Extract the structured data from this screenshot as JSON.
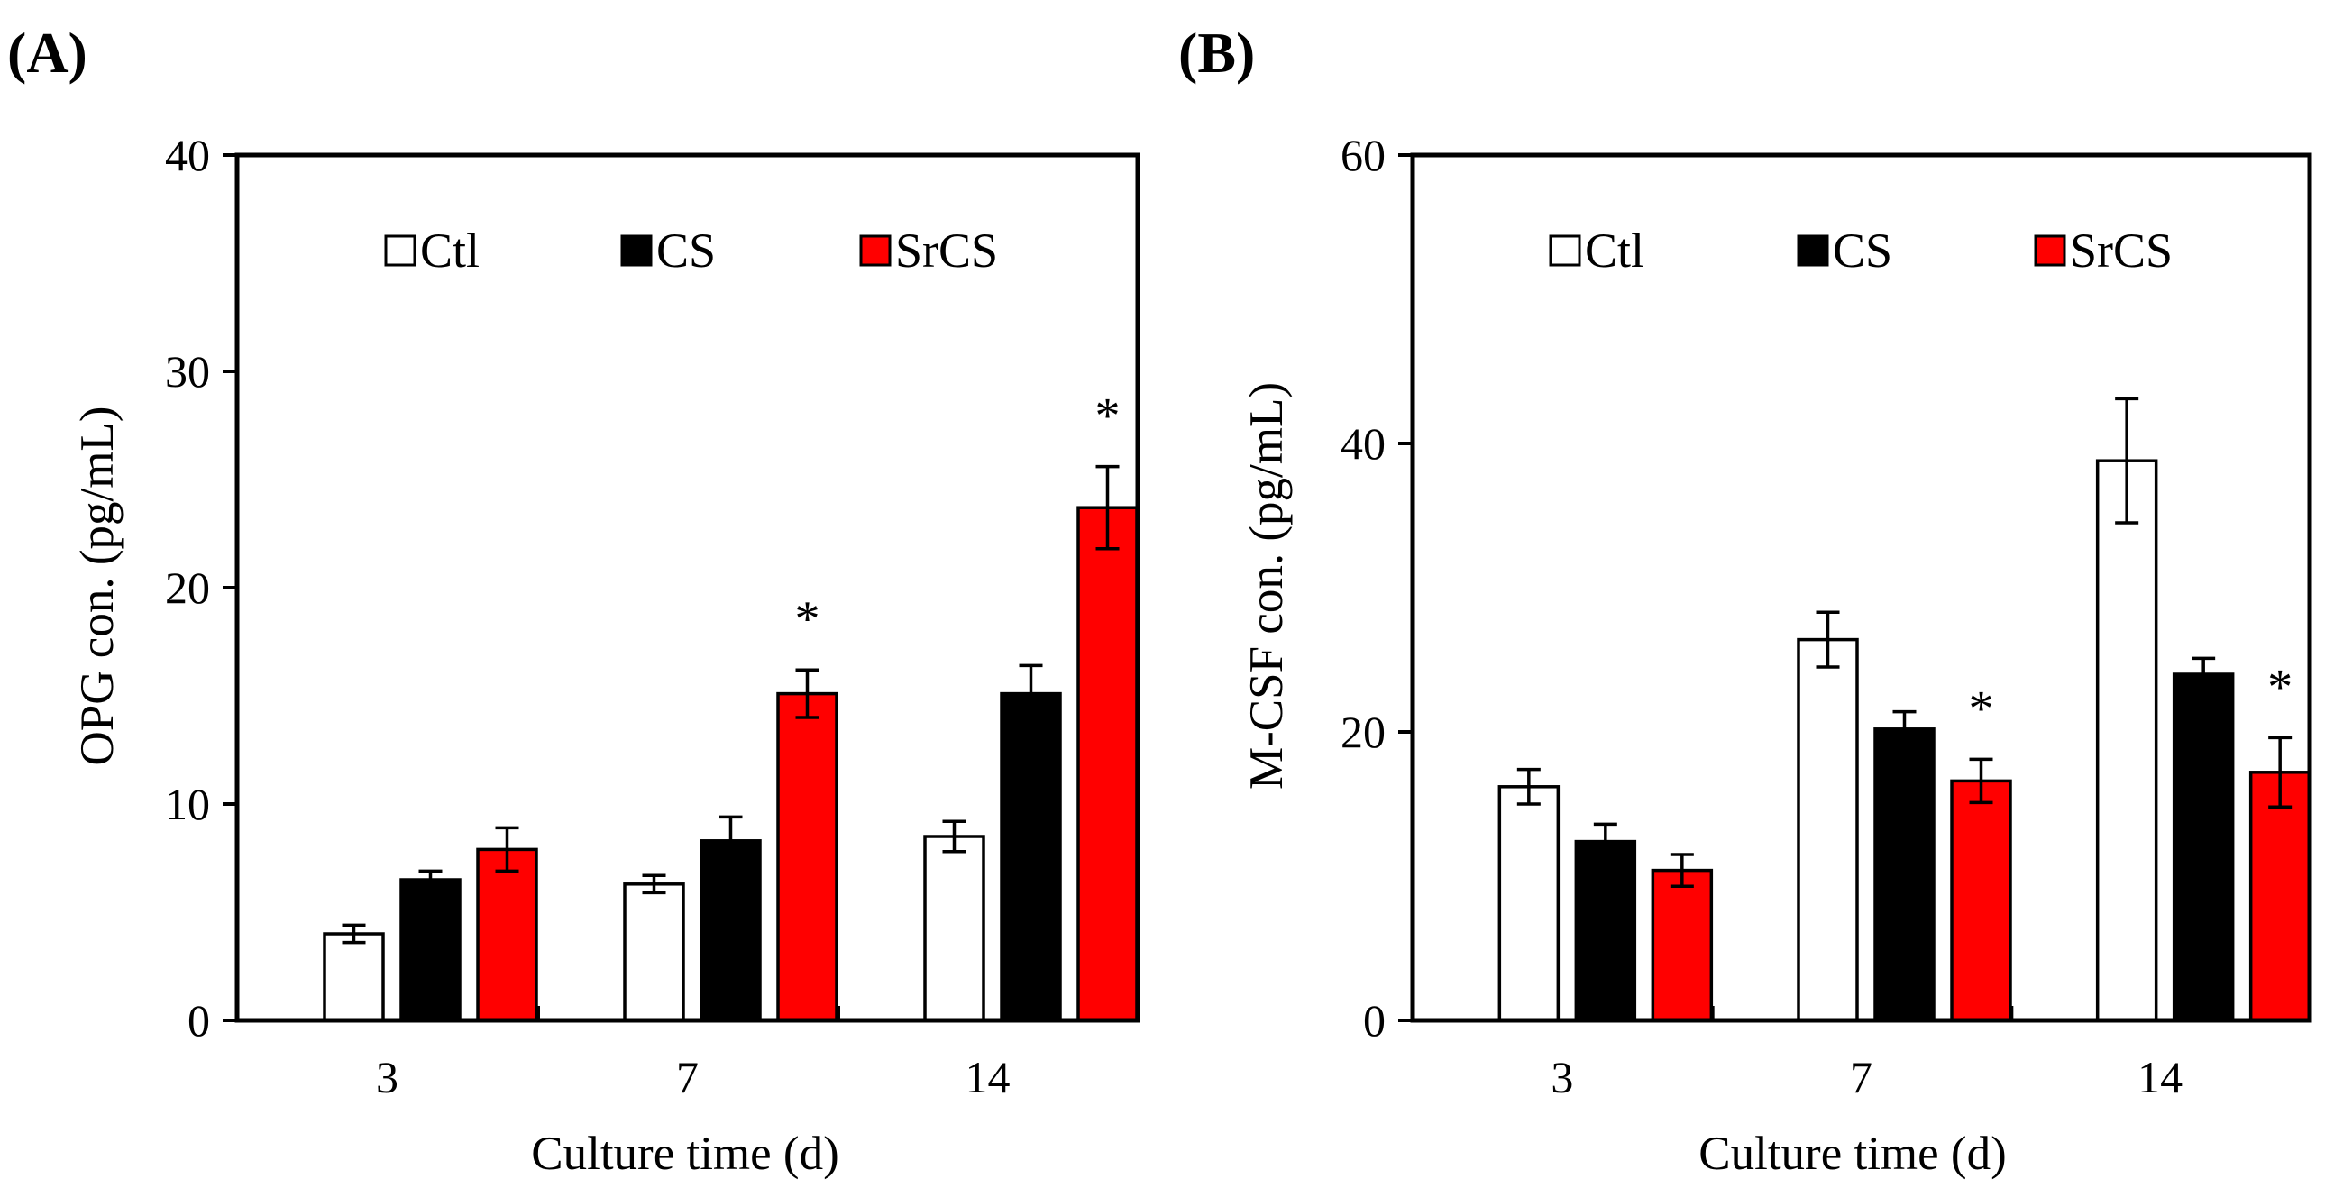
{
  "chart_data": [
    {
      "type": "bar",
      "panel_label": "(A)",
      "categories": [
        "3",
        "7",
        "14"
      ],
      "xlabel": "Culture time (d)",
      "ylabel": "OPG con. (pg/mL)",
      "ylim": [
        0,
        40
      ],
      "yticks": [
        0,
        10,
        20,
        30,
        40
      ],
      "legend_position": "top",
      "series": [
        {
          "name": "Ctl",
          "color": "#ffffff",
          "values": [
            4.0,
            6.3,
            8.5
          ],
          "errors": [
            0.4,
            0.4,
            0.7
          ],
          "sig": [
            "",
            "",
            ""
          ]
        },
        {
          "name": "CS",
          "color": "#000000",
          "values": [
            6.5,
            8.3,
            15.1
          ],
          "errors": [
            0.4,
            1.1,
            1.3
          ],
          "sig": [
            "",
            "",
            ""
          ]
        },
        {
          "name": "SrCS",
          "color": "#ff0000",
          "values": [
            7.9,
            15.1,
            23.7
          ],
          "errors": [
            1.0,
            1.1,
            1.9
          ],
          "sig": [
            "",
            "*",
            "*"
          ]
        }
      ]
    },
    {
      "type": "bar",
      "panel_label": "(B)",
      "categories": [
        "3",
        "7",
        "14"
      ],
      "xlabel": "Culture time (d)",
      "ylabel": "M-CSF con. (pg/mL)",
      "ylim": [
        0,
        60
      ],
      "yticks": [
        0,
        20,
        40,
        60
      ],
      "legend_position": "top",
      "series": [
        {
          "name": "Ctl",
          "color": "#ffffff",
          "values": [
            16.2,
            26.4,
            38.8
          ],
          "errors": [
            1.2,
            1.9,
            4.3
          ],
          "sig": [
            "",
            "",
            ""
          ]
        },
        {
          "name": "CS",
          "color": "#000000",
          "values": [
            12.4,
            20.2,
            24.0
          ],
          "errors": [
            1.2,
            1.2,
            1.1
          ],
          "sig": [
            "",
            "",
            ""
          ]
        },
        {
          "name": "SrCS",
          "color": "#ff0000",
          "values": [
            10.4,
            16.6,
            17.2
          ],
          "errors": [
            1.1,
            1.5,
            2.4
          ],
          "sig": [
            "",
            "*",
            "*"
          ]
        }
      ]
    }
  ]
}
